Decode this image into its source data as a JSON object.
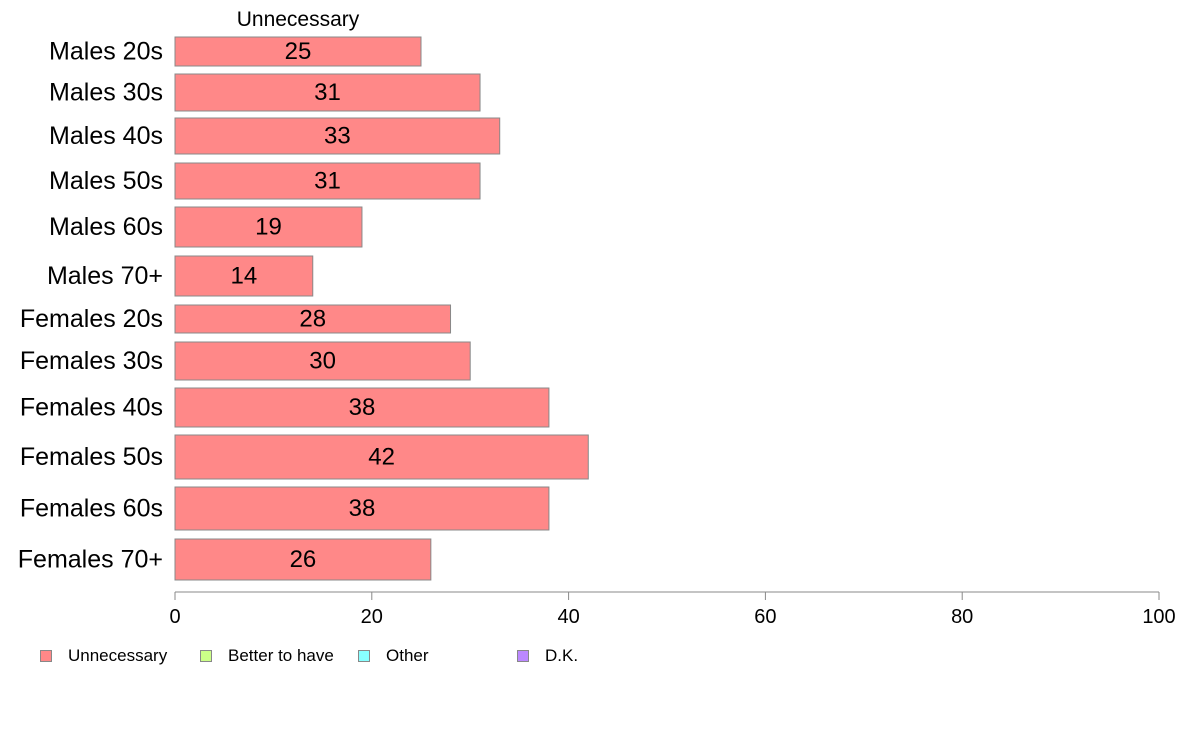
{
  "chart_data": {
    "type": "bar",
    "orientation": "horizontal",
    "series_header": "Unnecessary",
    "categories": [
      "Males 20s",
      "Males 30s",
      "Males 40s",
      "Males 50s",
      "Males 60s",
      "Males 70+",
      "Females 20s",
      "Females 30s",
      "Females 40s",
      "Females 50s",
      "Females 60s",
      "Females 70+"
    ],
    "values": [
      25,
      31,
      33,
      31,
      19,
      14,
      28,
      30,
      38,
      42,
      38,
      26
    ],
    "data_labels": [
      "25",
      "31",
      "33",
      "31",
      "19",
      "14",
      "28",
      "30",
      "38",
      "42",
      "38",
      "26"
    ],
    "xlim": [
      0,
      100
    ],
    "x_ticks": [
      0,
      20,
      40,
      60,
      80,
      100
    ],
    "x_tick_labels": [
      "0",
      "20",
      "40",
      "60",
      "80",
      "100"
    ],
    "grid": false,
    "legend_position": "bottom-left",
    "legend": [
      {
        "label": "Unnecessary",
        "color": "#ff8888"
      },
      {
        "label": "Better to have",
        "color": "#ccff88"
      },
      {
        "label": "Other",
        "color": "#88ffff"
      },
      {
        "label": "D.K.",
        "color": "#bb88ff"
      }
    ],
    "colors": {
      "bar": "#ff8888",
      "bar_border": "#888888",
      "axis": "#888888"
    }
  }
}
